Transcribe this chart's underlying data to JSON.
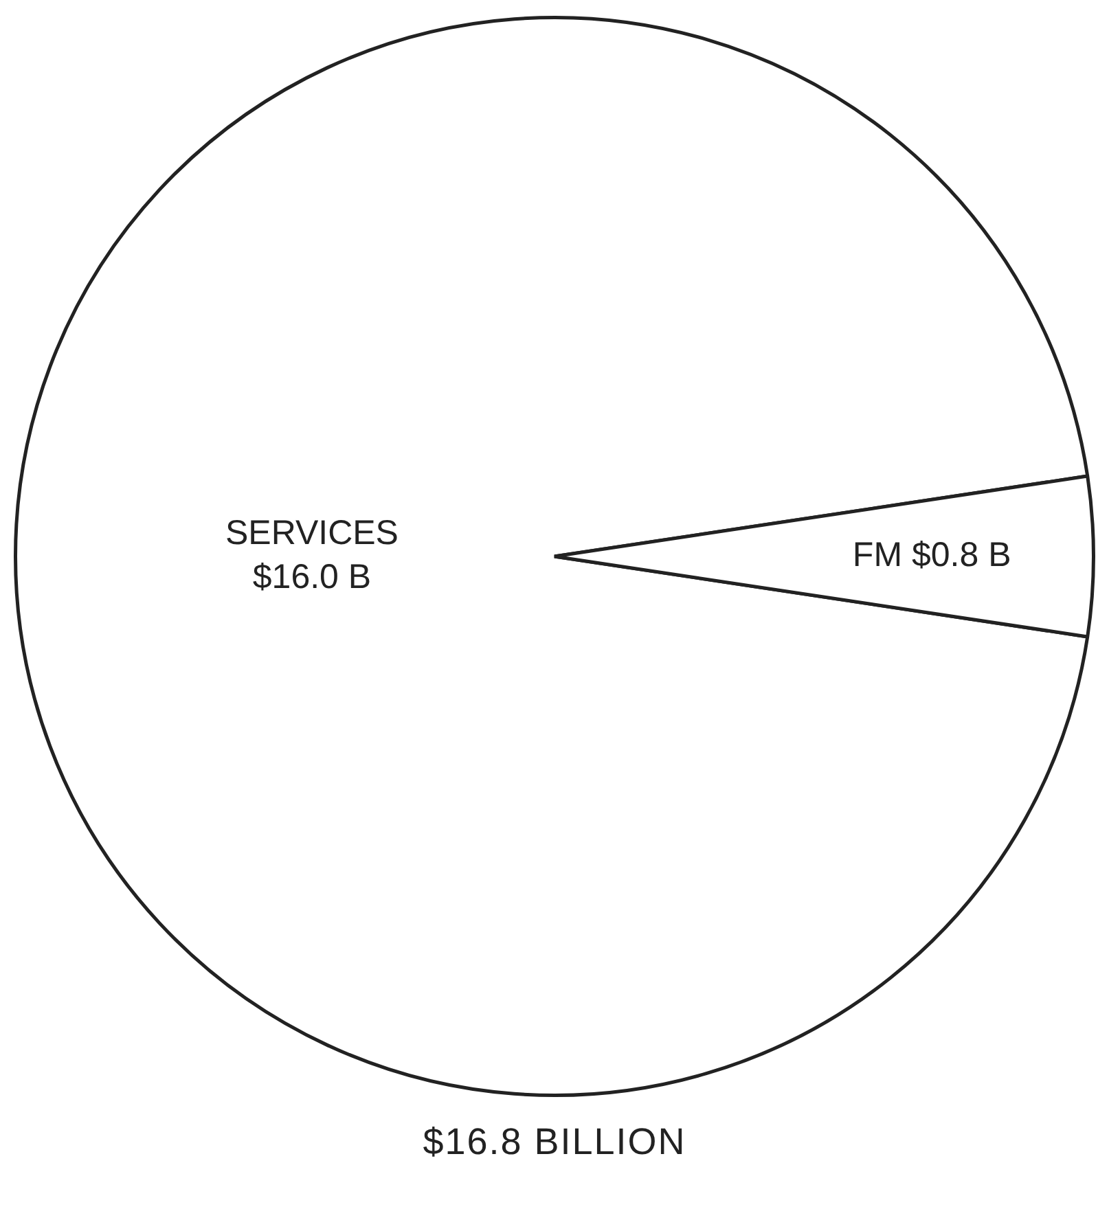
{
  "chart_data": {
    "type": "pie",
    "categories": [
      "SERVICES",
      "FM"
    ],
    "values": [
      16.0,
      0.8
    ],
    "value_labels": [
      "$16.0 B",
      "$0.8 B"
    ],
    "colors": [
      "#ffffff",
      "#ffffff"
    ],
    "annotations": [
      "$16.8 BILLION"
    ],
    "legend": false
  }
}
